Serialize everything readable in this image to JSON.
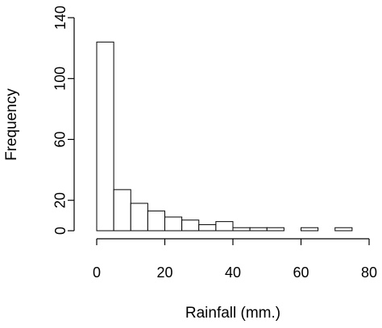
{
  "chart_data": {
    "type": "bar",
    "title": "",
    "xlabel": "Rainfall (mm.)",
    "ylabel": "Frequency",
    "bin_edges": [
      0,
      5,
      10,
      15,
      20,
      25,
      30,
      35,
      40,
      45,
      50,
      55,
      60,
      65,
      70,
      75
    ],
    "values": [
      124,
      27,
      18,
      13,
      9,
      7,
      4,
      6,
      2,
      2,
      2,
      0,
      2,
      0,
      2
    ],
    "x_ticks": [
      "0",
      "20",
      "40",
      "60",
      "80"
    ],
    "y_ticks": [
      "0",
      "20",
      "60",
      "100",
      "140"
    ],
    "xlim": [
      0,
      80
    ],
    "ylim": [
      0,
      140
    ],
    "grid": false,
    "colors": {
      "bar_fill": "#ffffff",
      "bar_stroke": "#000000",
      "axis": "#000000",
      "text": "#000000"
    }
  }
}
